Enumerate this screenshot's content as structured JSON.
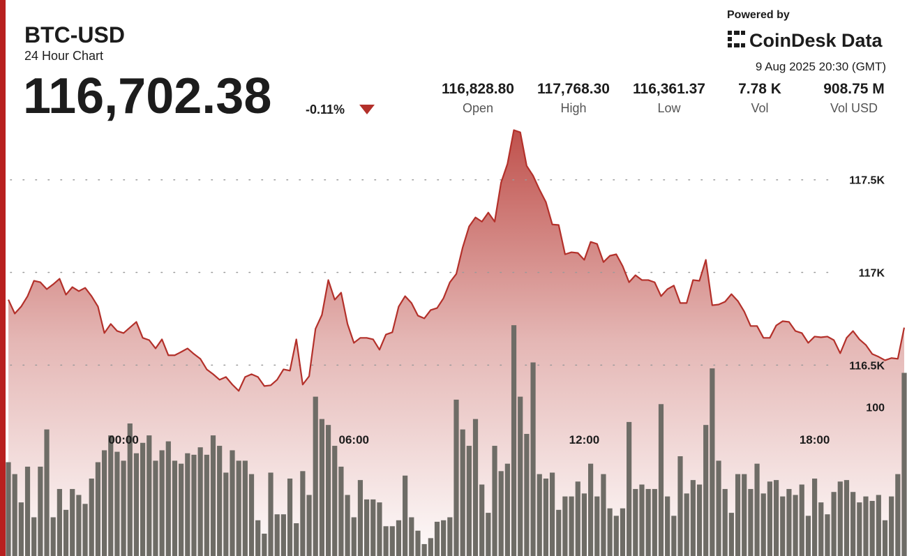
{
  "chart_data": {
    "type": "line",
    "title": "BTC-USD",
    "subtitle": "24 Hour Chart",
    "price": "116,702.38",
    "change": "-0.11%",
    "powered_by": "Powered by",
    "brand": "CoinDesk Data",
    "timestamp": "9 Aug 2025 20:30 (GMT)",
    "stats": [
      {
        "value": "116,828.80",
        "label": "Open"
      },
      {
        "value": "117,768.30",
        "label": "High"
      },
      {
        "value": "116,361.37",
        "label": "Low"
      },
      {
        "value": "7.78 K",
        "label": "Vol"
      },
      {
        "value": "908.75 M",
        "label": "Vol USD"
      }
    ],
    "categories": [
      null,
      null,
      null,
      null,
      null,
      null,
      null,
      null,
      null,
      null,
      null,
      null,
      null,
      null,
      null,
      null,
      null,
      null,
      "00:00",
      null,
      null,
      null,
      null,
      null,
      null,
      null,
      null,
      null,
      null,
      null,
      null,
      null,
      null,
      null,
      null,
      null,
      null,
      null,
      null,
      null,
      null,
      null,
      null,
      null,
      null,
      null,
      null,
      null,
      null,
      null,
      null,
      null,
      null,
      null,
      "06:00",
      null,
      null,
      null,
      null,
      null,
      null,
      null,
      null,
      null,
      null,
      null,
      null,
      null,
      null,
      null,
      null,
      null,
      null,
      null,
      null,
      null,
      null,
      null,
      null,
      null,
      null,
      null,
      null,
      null,
      null,
      null,
      null,
      null,
      null,
      null,
      "12:00",
      null,
      null,
      null,
      null,
      null,
      null,
      null,
      null,
      null,
      null,
      null,
      null,
      null,
      null,
      null,
      null,
      null,
      null,
      null,
      null,
      null,
      null,
      null,
      null,
      null,
      null,
      null,
      null,
      null,
      null,
      null,
      null,
      null,
      null,
      null,
      "18:00",
      null,
      null,
      null,
      null,
      null,
      null,
      null,
      null,
      null,
      null,
      null,
      null,
      null,
      null
    ],
    "series": [
      {
        "type": "area",
        "color": "#b3302a",
        "values": [
          116853,
          116778,
          116816,
          116872,
          116955,
          116947,
          116910,
          116936,
          116966,
          116880,
          116921,
          116899,
          116917,
          116872,
          116816,
          116673,
          116722,
          116684,
          116673,
          116703,
          116733,
          116647,
          116635,
          116590,
          116639,
          116553,
          116553,
          116571,
          116590,
          116560,
          116534,
          116477,
          116451,
          116421,
          116436,
          116395,
          116361,
          116436,
          116451,
          116436,
          116387,
          116391,
          116421,
          116477,
          116470,
          116639,
          116395,
          116440,
          116696,
          116771,
          116959,
          116853,
          116891,
          116722,
          116620,
          116647,
          116647,
          116639,
          116583,
          116665,
          116677,
          116816,
          116872,
          116835,
          116767,
          116752,
          116797,
          116808,
          116861,
          116947,
          116992,
          117135,
          117248,
          117297,
          117274,
          117323,
          117274,
          117485,
          117586,
          117768,
          117756,
          117575,
          117522,
          117447,
          117380,
          117259,
          117256,
          117098,
          117109,
          117105,
          117068,
          117165,
          117154,
          117056,
          117090,
          117098,
          117034,
          116947,
          116985,
          116959,
          116959,
          116947,
          116872,
          116910,
          116929,
          116835,
          116835,
          116959,
          116955,
          117068,
          116823,
          116827,
          116842,
          116883,
          116846,
          116789,
          116711,
          116711,
          116647,
          116647,
          116714,
          116737,
          116733,
          116684,
          116673,
          116620,
          116654,
          116650,
          116654,
          116635,
          116564,
          116647,
          116684,
          116639,
          116609,
          116560,
          116545,
          116526,
          116538,
          116534,
          116702.38
        ]
      },
      {
        "type": "bar",
        "axis": "y2",
        "color": "#6e6c66",
        "values": [
          63,
          55,
          36,
          60,
          26,
          60,
          85,
          26,
          45,
          31,
          45,
          41,
          35,
          52,
          63,
          71,
          81,
          70,
          64,
          89,
          69,
          76,
          81,
          64,
          71,
          77,
          64,
          62,
          69,
          68,
          73,
          68,
          81,
          74,
          56,
          71,
          64,
          64,
          55,
          24,
          15,
          56,
          28,
          28,
          52,
          22,
          57,
          41,
          107,
          92,
          88,
          74,
          60,
          41,
          26,
          51,
          38,
          38,
          36,
          20,
          20,
          24,
          54,
          26,
          17,
          8,
          12,
          23,
          24,
          26,
          105,
          85,
          74,
          92,
          48,
          29,
          74,
          57,
          62,
          155,
          107,
          82,
          130,
          55,
          52,
          56,
          31,
          40,
          40,
          50,
          42,
          62,
          40,
          55,
          32,
          27,
          32,
          90,
          45,
          48,
          45,
          45,
          102,
          40,
          27,
          67,
          42,
          51,
          48,
          88,
          126,
          64,
          45,
          29,
          55,
          55,
          45,
          62,
          42,
          50,
          51,
          40,
          45,
          41,
          48,
          27,
          52,
          36,
          28,
          43,
          50,
          51,
          43,
          36,
          40,
          37,
          41,
          24,
          40,
          55,
          123
        ]
      }
    ],
    "ylim": [
      115470,
      117800
    ],
    "yticks": [
      {
        "value": 116500,
        "label": "116.5K"
      },
      {
        "value": 117000,
        "label": "117K"
      },
      {
        "value": 117500,
        "label": "117.5K"
      }
    ],
    "y2lim": [
      0,
      290
    ],
    "y2ticks": [
      100
    ],
    "grid": true
  }
}
